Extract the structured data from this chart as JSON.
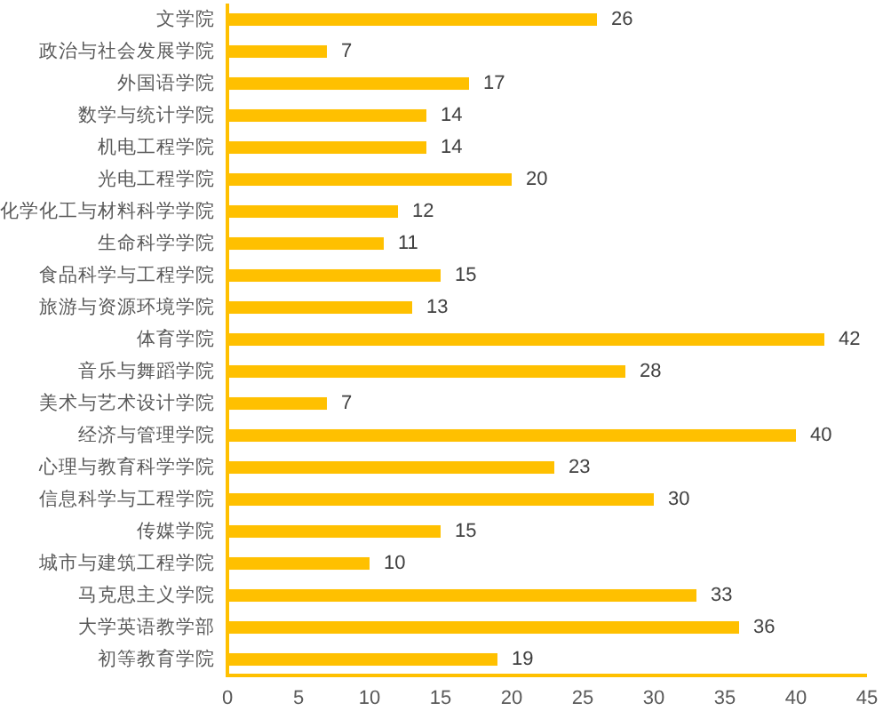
{
  "chart_data": {
    "type": "bar",
    "orientation": "horizontal",
    "categories": [
      "文学院",
      "政治与社会发展学院",
      "外国语学院",
      "数学与统计学院",
      "机电工程学院",
      "光电工程学院",
      "化学化工与材料科学学院",
      "生命科学学院",
      "食品科学与工程学院",
      "旅游与资源环境学院",
      "体育学院",
      "音乐与舞蹈学院",
      "美术与艺术设计学院",
      "经济与管理学院",
      "心理与教育科学学院",
      "信息科学与工程学院",
      "传媒学院",
      "城市与建筑工程学院",
      "马克思主义学院",
      "大学英语教学部",
      "初等教育学院"
    ],
    "values": [
      26,
      7,
      17,
      14,
      14,
      20,
      12,
      11,
      15,
      13,
      42,
      28,
      7,
      40,
      23,
      30,
      15,
      10,
      33,
      36,
      19
    ],
    "color": "#ffc000",
    "xlim": [
      0,
      45
    ],
    "xticks": [
      0,
      5,
      10,
      15,
      20,
      25,
      30,
      35,
      40,
      45
    ],
    "data_labels": true,
    "grid": false
  }
}
